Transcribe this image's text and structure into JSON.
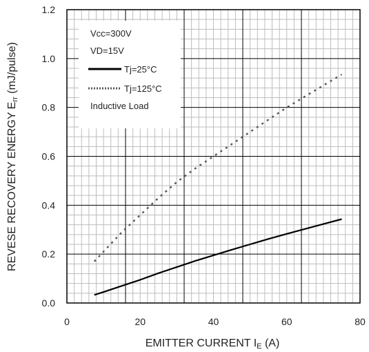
{
  "chart_data": {
    "type": "line",
    "xlabel": {
      "main": "EMITTER CURRENT I",
      "sub": "E",
      "suffix": " (A)"
    },
    "ylabel": {
      "main": "REVESE RECOVERY ENERGY E",
      "sub": "rr",
      "suffix": " (mJ/pulse)"
    },
    "xlim": [
      0,
      80
    ],
    "ylim": [
      0,
      1.2
    ],
    "x_ticks": [
      "0",
      "20",
      "40",
      "60",
      "80"
    ],
    "y_ticks": [
      "0.0",
      "0.2",
      "0.4",
      "0.6",
      "0.8",
      "1.0",
      "1.2"
    ],
    "grid": {
      "major": true,
      "minor": true
    },
    "annotations": [
      "Vcc=300V",
      "VD=15V",
      "Inductive Load"
    ],
    "series": [
      {
        "name": "Tj=25°C",
        "style": "solid",
        "color": "#000000",
        "x": [
          7.5,
          10,
          15,
          20,
          25,
          30,
          35,
          40,
          45,
          50,
          55,
          60,
          65,
          70,
          75
        ],
        "y": [
          0.033,
          0.045,
          0.07,
          0.095,
          0.122,
          0.147,
          0.172,
          0.195,
          0.218,
          0.24,
          0.262,
          0.283,
          0.303,
          0.323,
          0.343
        ]
      },
      {
        "name": "Tj=125°C",
        "style": "dotted",
        "color": "#555555",
        "x": [
          7.5,
          10,
          15,
          20,
          25,
          30,
          35,
          40,
          45,
          50,
          55,
          60,
          65,
          70,
          75
        ],
        "y": [
          0.17,
          0.21,
          0.29,
          0.36,
          0.43,
          0.495,
          0.55,
          0.6,
          0.65,
          0.7,
          0.75,
          0.8,
          0.845,
          0.89,
          0.935
        ]
      }
    ]
  }
}
